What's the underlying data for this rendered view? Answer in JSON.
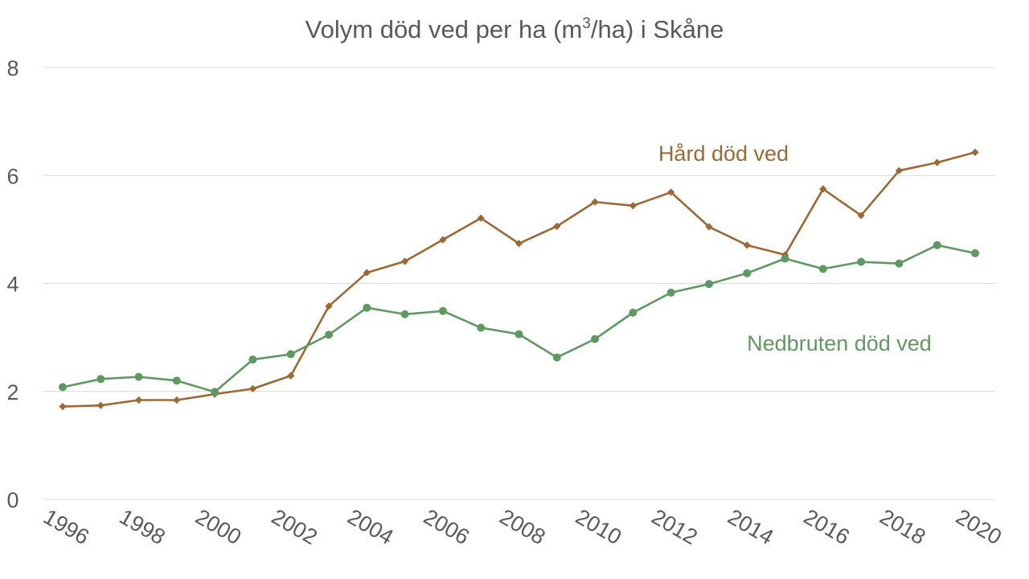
{
  "chart_data": {
    "type": "line",
    "title_main": "Volym död ved per ha (m",
    "title_sup": "3",
    "title_tail": "/ha) i Skåne",
    "xlabel": "",
    "ylabel": "",
    "ylim": [
      0,
      8
    ],
    "yticks": [
      "0",
      "2",
      "4",
      "6",
      "8"
    ],
    "xlim": [
      1996,
      2020
    ],
    "xticks": [
      "1996",
      "1998",
      "2000",
      "2002",
      "2004",
      "2006",
      "2008",
      "2010",
      "2012",
      "2014",
      "2016",
      "2018",
      "2020"
    ],
    "grid": true,
    "x": [
      1996,
      1997,
      1998,
      1999,
      2000,
      2001,
      2002,
      2003,
      2004,
      2005,
      2006,
      2007,
      2008,
      2009,
      2010,
      2011,
      2012,
      2013,
      2014,
      2015,
      2016,
      2017,
      2018,
      2019,
      2020
    ],
    "series": [
      {
        "name": "Hård död ved",
        "color": "#9c6833",
        "marker": "diamond",
        "values": [
          1.72,
          1.74,
          1.84,
          1.84,
          1.95,
          2.05,
          2.29,
          3.58,
          4.2,
          4.41,
          4.81,
          5.21,
          4.74,
          5.06,
          5.51,
          5.44,
          5.69,
          5.05,
          4.71,
          4.53,
          5.75,
          5.26,
          6.09,
          6.24,
          6.43
        ]
      },
      {
        "name": "Nedbruten död ved",
        "color": "#609861",
        "marker": "circle",
        "values": [
          2.08,
          2.23,
          2.27,
          2.2,
          1.99,
          2.59,
          2.69,
          3.05,
          3.55,
          3.43,
          3.49,
          3.18,
          3.06,
          2.63,
          2.97,
          3.46,
          3.83,
          3.99,
          4.19,
          4.46,
          4.27,
          4.4,
          4.37,
          4.71,
          4.56
        ]
      }
    ]
  }
}
